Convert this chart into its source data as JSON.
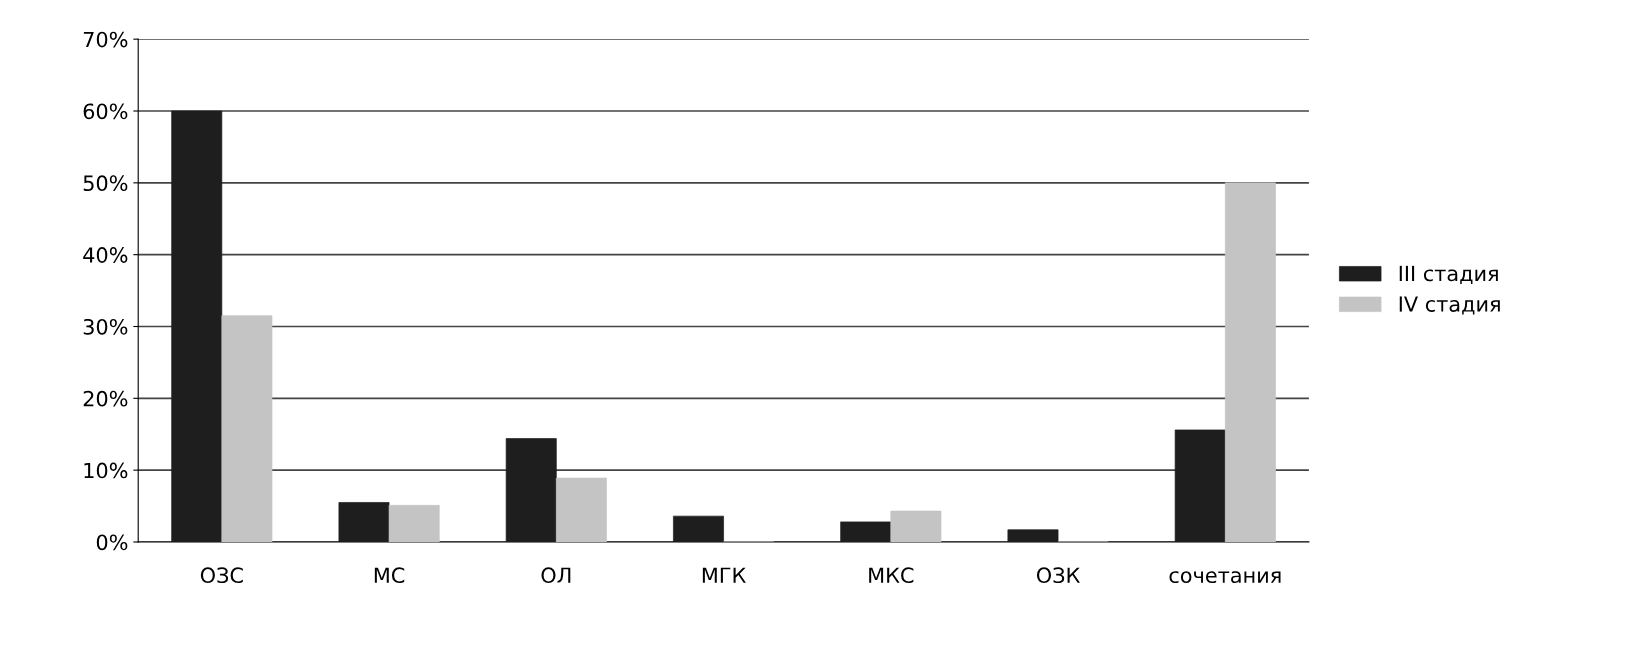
{
  "chart_data": {
    "type": "bar",
    "categories": [
      "ОЗС",
      "МС",
      "ОЛ",
      "МГК",
      "МКС",
      "ОЗК",
      "сочетания"
    ],
    "series": [
      {
        "name": "III стадия",
        "color": "#1e1e1e",
        "values": [
          60,
          5.5,
          14.4,
          3.6,
          2.8,
          1.7,
          15.6
        ]
      },
      {
        "name": "IV стадия",
        "color": "#c4c4c4",
        "values": [
          31.5,
          5.1,
          8.9,
          0,
          4.3,
          0,
          50
        ]
      }
    ],
    "ylim": [
      0,
      70
    ],
    "yticks": [
      {
        "value": 0,
        "label": "0%"
      },
      {
        "value": 10,
        "label": "10%"
      },
      {
        "value": 20,
        "label": "20%"
      },
      {
        "value": 30,
        "label": "30%"
      },
      {
        "value": 40,
        "label": "40%"
      },
      {
        "value": 50,
        "label": "50%"
      },
      {
        "value": 60,
        "label": "60%"
      },
      {
        "value": 70,
        "label": "70%"
      }
    ],
    "grid": "y",
    "legend": "right"
  }
}
